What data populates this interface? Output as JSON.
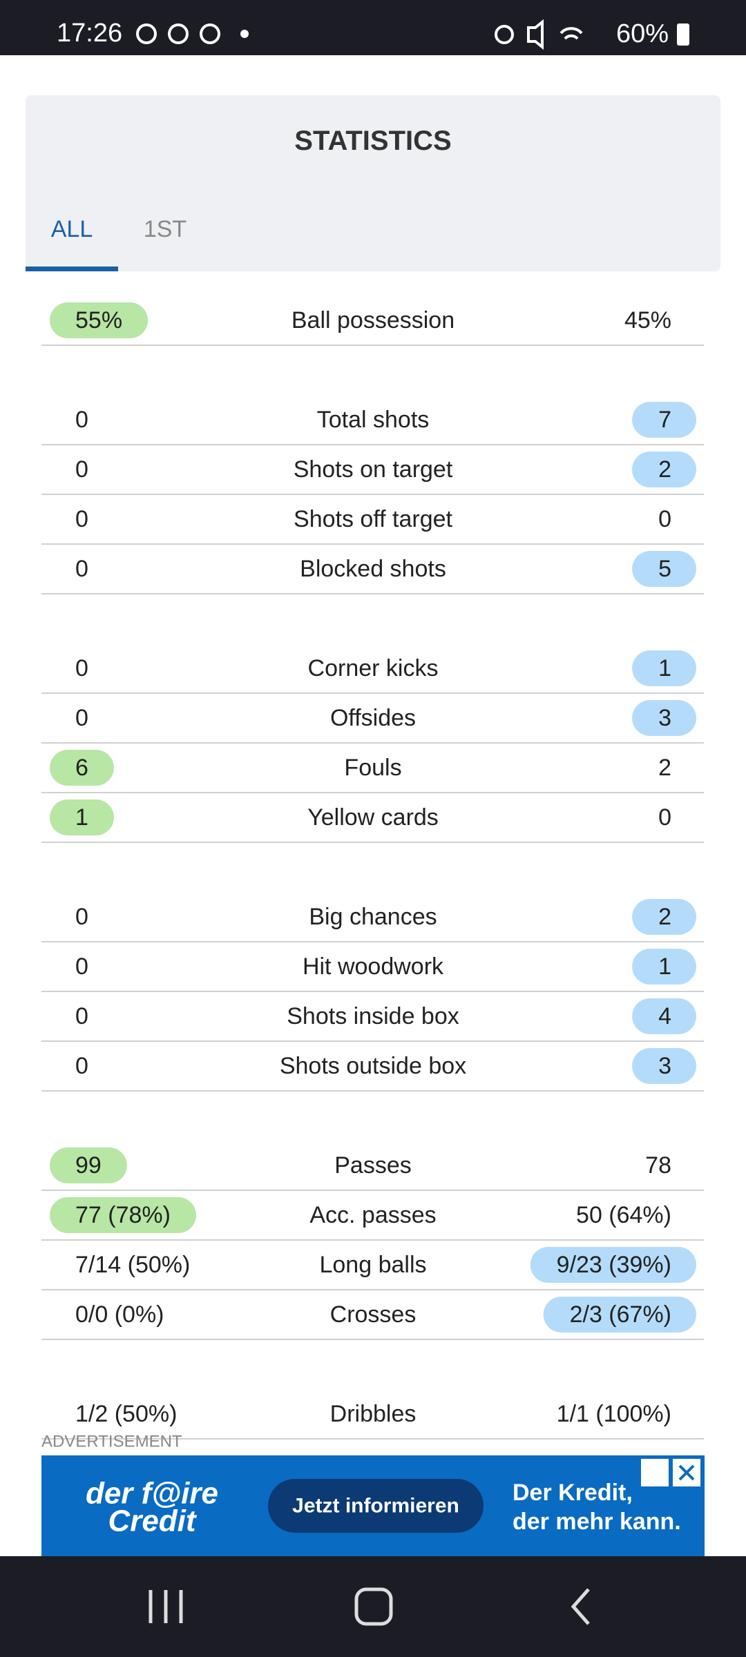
{
  "status": {
    "time": "17:26",
    "battery": "60%"
  },
  "header": {
    "title": "STATISTICS",
    "tabs": [
      "ALL",
      "1ST"
    ]
  },
  "groups": [
    [
      {
        "home": "55%",
        "label": "Ball possession",
        "away": "45%",
        "highlight": "home"
      }
    ],
    [
      {
        "home": "0",
        "label": "Total shots",
        "away": "7",
        "highlight": "away"
      },
      {
        "home": "0",
        "label": "Shots on target",
        "away": "2",
        "highlight": "away"
      },
      {
        "home": "0",
        "label": "Shots off target",
        "away": "0"
      },
      {
        "home": "0",
        "label": "Blocked shots",
        "away": "5",
        "highlight": "away"
      }
    ],
    [
      {
        "home": "0",
        "label": "Corner kicks",
        "away": "1",
        "highlight": "away"
      },
      {
        "home": "0",
        "label": "Offsides",
        "away": "3",
        "highlight": "away"
      },
      {
        "home": "6",
        "label": "Fouls",
        "away": "2",
        "highlight": "home"
      },
      {
        "home": "1",
        "label": "Yellow cards",
        "away": "0",
        "highlight": "home"
      }
    ],
    [
      {
        "home": "0",
        "label": "Big chances",
        "away": "2",
        "highlight": "away"
      },
      {
        "home": "0",
        "label": "Hit woodwork",
        "away": "1",
        "highlight": "away"
      },
      {
        "home": "0",
        "label": "Shots inside box",
        "away": "4",
        "highlight": "away"
      },
      {
        "home": "0",
        "label": "Shots outside box",
        "away": "3",
        "highlight": "away"
      }
    ],
    [
      {
        "home": "99",
        "label": "Passes",
        "away": "78",
        "highlight": "home"
      },
      {
        "home": "77 (78%)",
        "label": "Acc. passes",
        "away": "50 (64%)",
        "highlight": "home"
      },
      {
        "home": "7/14 (50%)",
        "label": "Long balls",
        "away": "9/23 (39%)",
        "highlight": "away"
      },
      {
        "home": "0/0 (0%)",
        "label": "Crosses",
        "away": "2/3 (67%)",
        "highlight": "away"
      }
    ],
    [
      {
        "home": "1/2 (50%)",
        "label": "Dribbles",
        "away": "1/1 (100%)"
      }
    ]
  ],
  "ad": {
    "label": "ADVERTISEMENT",
    "brand_line1": "der f@ire",
    "brand_line2": "Credit",
    "button": "Jetzt informieren",
    "tagline_line1": "Der Kredit,",
    "tagline_line2": "der mehr kann."
  }
}
